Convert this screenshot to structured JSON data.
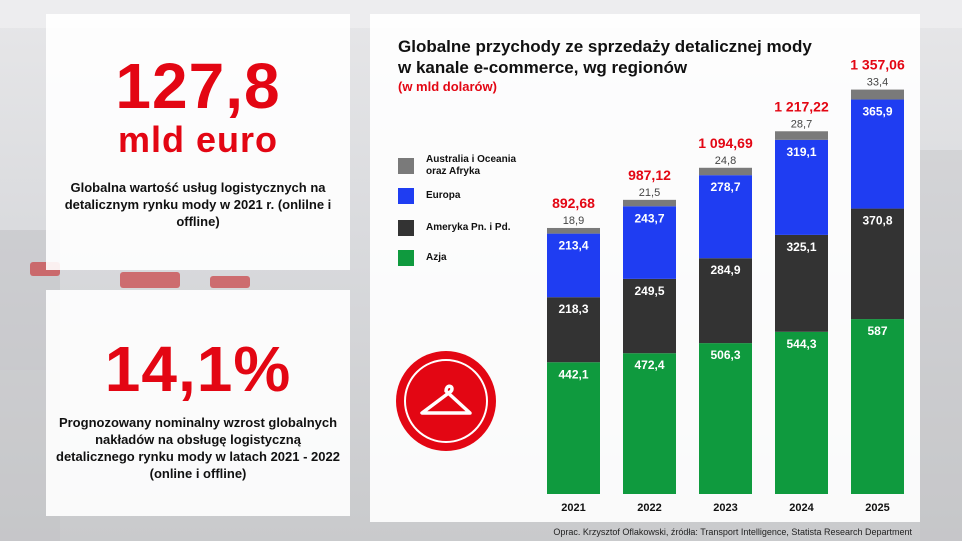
{
  "stat1": {
    "value": "127,8",
    "unit": "mld euro",
    "description": "Globalna wartość usług logistycznych na  detalicznym rynku mody w 2021 r. (onlilne i offline)"
  },
  "stat2": {
    "value": "14,1%",
    "description": "Prognozowany nominalny wzrost globalnych nakładów na obsługę logistyczną detalicznego rynku mody w latach 2021 - 2022 (online i offline)"
  },
  "icon": "hanger-icon",
  "colors": {
    "accent": "#e30613",
    "azja": "#0f9a3e",
    "ameryka": "#333333",
    "europa": "#1f3df2",
    "australia": "#7a7a7a"
  },
  "chart_data": {
    "type": "bar",
    "stacked": true,
    "title": "Globalne przychody ze sprzedaży detalicznej mody w kanale e-commerce, wg regionów",
    "subtitle": "(w mld dolarów)",
    "categories": [
      "2021",
      "2022",
      "2023",
      "2024",
      "2025"
    ],
    "series": [
      {
        "name": "Azja",
        "color": "#0f9a3e",
        "values": [
          442.1,
          472.4,
          506.3,
          544.3,
          587
        ],
        "labels": [
          "442,1",
          "472,4",
          "506,3",
          "544,3",
          "587"
        ]
      },
      {
        "name": "Ameryka Pn. i Pd.",
        "color": "#333333",
        "values": [
          218.3,
          249.5,
          284.9,
          325.1,
          370.8
        ],
        "labels": [
          "218,3",
          "249,5",
          "284,9",
          "325,1",
          "370,8"
        ]
      },
      {
        "name": "Europa",
        "color": "#1f3df2",
        "values": [
          213.4,
          243.7,
          278.7,
          319.1,
          365.9
        ],
        "labels": [
          "213,4",
          "243,7",
          "278,7",
          "319,1",
          "365,9"
        ]
      },
      {
        "name": "Australia i Oceania oraz Afryka",
        "color": "#7a7a7a",
        "values": [
          18.9,
          21.5,
          24.8,
          28.7,
          33.4
        ],
        "labels": [
          "18,9",
          "21,5",
          "24,8",
          "28,7",
          "33,4"
        ]
      }
    ],
    "totals": [
      892.68,
      987.12,
      1094.69,
      1217.22,
      1357.06
    ],
    "total_labels": [
      "892,68",
      "987,12",
      "1 094,69",
      "1 217,22",
      "1 357,06"
    ],
    "legend": [
      "Australia i Oceania oraz Afryka",
      "Europa",
      "Ameryka Pn. i Pd.",
      "Azja"
    ],
    "legend_position": "left"
  },
  "source": "Oprac. Krzysztof Oflakowski, źródła: Transport Intelligence, Statista Research Department"
}
